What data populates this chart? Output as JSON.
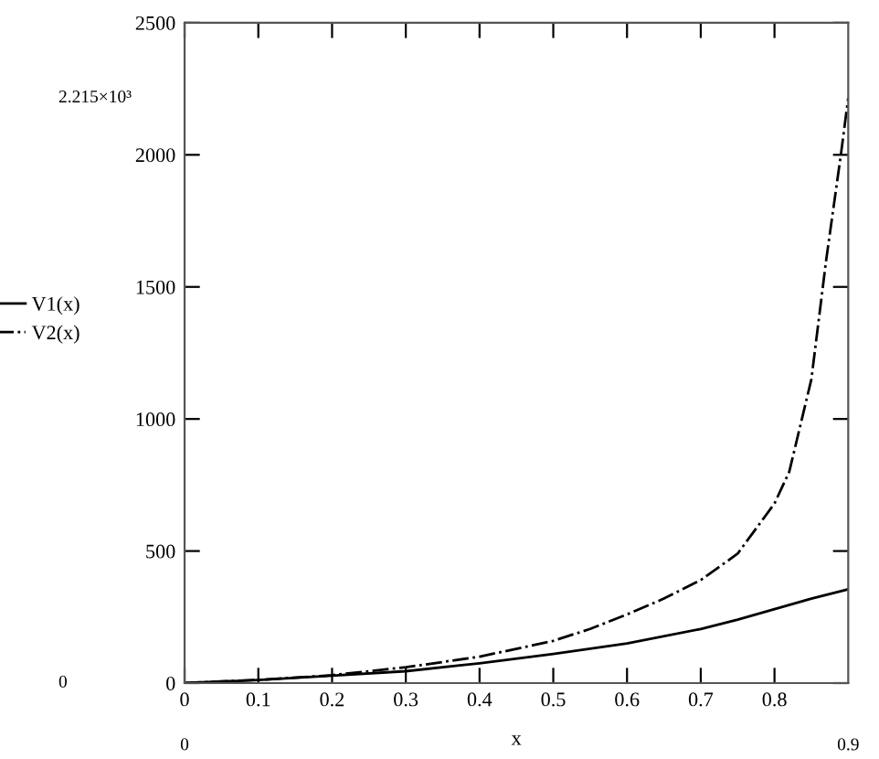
{
  "chart_data": {
    "type": "line",
    "xlabel": "x",
    "series": [
      {
        "name": "V1(x)",
        "color": "#000000",
        "line_style": "solid",
        "x": [
          0,
          0.1,
          0.2,
          0.3,
          0.4,
          0.5,
          0.6,
          0.7,
          0.75,
          0.8,
          0.85,
          0.9
        ],
        "values": [
          0,
          12,
          28,
          45,
          75,
          110,
          150,
          205,
          240,
          280,
          320,
          355
        ]
      },
      {
        "name": "V2(x)",
        "color": "#000000",
        "line_style": "dashdot",
        "x": [
          0,
          0.1,
          0.2,
          0.3,
          0.4,
          0.5,
          0.55,
          0.6,
          0.65,
          0.7,
          0.75,
          0.8,
          0.82,
          0.85,
          0.87,
          0.89,
          0.9
        ],
        "values": [
          0,
          12,
          30,
          60,
          100,
          160,
          205,
          260,
          320,
          390,
          490,
          680,
          800,
          1150,
          1600,
          2000,
          2215
        ]
      }
    ],
    "xlim": [
      0,
      0.9
    ],
    "xticks": [
      0,
      0.1,
      0.2,
      0.3,
      0.4,
      0.5,
      0.6,
      0.7,
      0.8
    ],
    "ylim": [
      0,
      2500
    ],
    "yticks": [
      0,
      500,
      1000,
      1500,
      2000,
      2500
    ],
    "grid": false,
    "legend": "left",
    "marker": "none",
    "annotations": [
      "2.215×10³",
      "0",
      "0",
      "0.9"
    ]
  }
}
